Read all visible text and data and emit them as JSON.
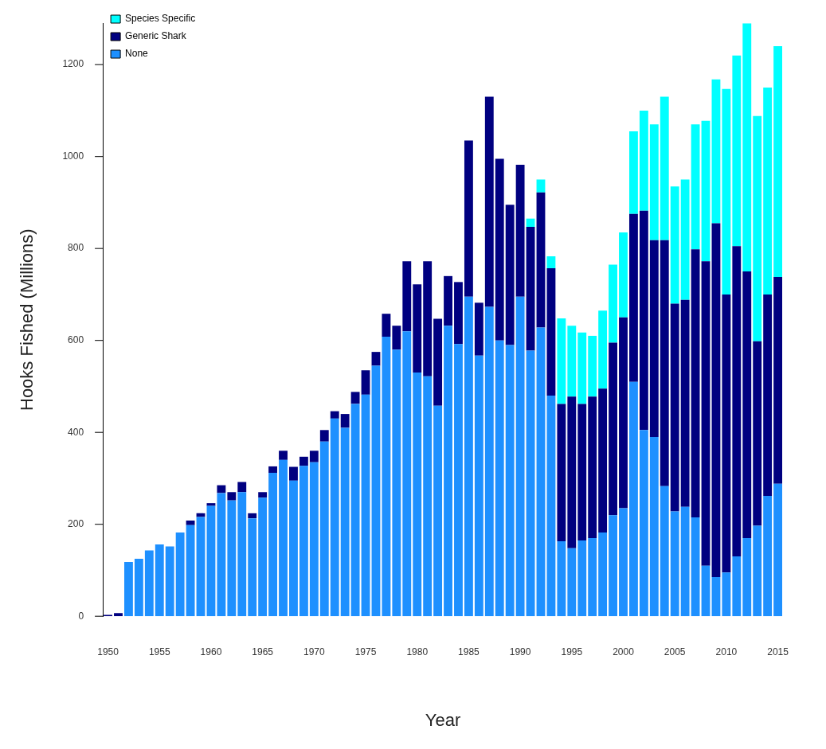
{
  "chart_data": {
    "type": "bar",
    "stacked": true,
    "xlabel": "Year",
    "ylabel": "Hooks Fished (Millions)",
    "categories": [
      "1950",
      null,
      null,
      null,
      null,
      "1955",
      null,
      null,
      null,
      null,
      "1960",
      null,
      null,
      null,
      null,
      "1965",
      null,
      null,
      null,
      null,
      "1970",
      null,
      null,
      null,
      null,
      "1975",
      null,
      null,
      null,
      null,
      "1980",
      null,
      null,
      null,
      null,
      "1985",
      null,
      null,
      null,
      null,
      "1990",
      null,
      null,
      null,
      null,
      "1995",
      null,
      null,
      null,
      null,
      "2000",
      null,
      null,
      null,
      null,
      "2005",
      null,
      null,
      null,
      null,
      "2010",
      null,
      null,
      null,
      null,
      "2015"
    ],
    "series": [
      {
        "name": "None",
        "color": "#1e90ff",
        "values": [
          0,
          0,
          118,
          125,
          143,
          156,
          152,
          182,
          198,
          216,
          240,
          268,
          252,
          270,
          213,
          258,
          312,
          340,
          295,
          327,
          335,
          380,
          430,
          410,
          462,
          482,
          545,
          608,
          580,
          620,
          530,
          522,
          458,
          632,
          592,
          695,
          567,
          673,
          600,
          590,
          695,
          578,
          628,
          480,
          163,
          148,
          165,
          170,
          182,
          220,
          235,
          510,
          405,
          390,
          283,
          228,
          238,
          215,
          110,
          85,
          95,
          130,
          170,
          197,
          262,
          288
        ]
      },
      {
        "name": "Generic Shark",
        "color": "#000080",
        "values": [
          3,
          7,
          0,
          0,
          0,
          0,
          0,
          0,
          10,
          8,
          6,
          17,
          18,
          22,
          11,
          12,
          14,
          20,
          30,
          20,
          25,
          25,
          16,
          30,
          26,
          53,
          30,
          50,
          52,
          152,
          192,
          250,
          189,
          108,
          135,
          340,
          115,
          457,
          395,
          305,
          287,
          269,
          294,
          277,
          299,
          330,
          297,
          308,
          313,
          375,
          415,
          365,
          477,
          428,
          535,
          452,
          450,
          583,
          662,
          770,
          605,
          675,
          580,
          401,
          438,
          450
        ]
      },
      {
        "name": "Species Specific",
        "color": "#00ffff",
        "values": [
          0,
          0,
          0,
          0,
          0,
          0,
          0,
          0,
          0,
          0,
          0,
          0,
          0,
          0,
          0,
          0,
          0,
          0,
          0,
          0,
          0,
          0,
          0,
          0,
          0,
          0,
          0,
          0,
          0,
          0,
          0,
          0,
          0,
          0,
          0,
          0,
          0,
          0,
          0,
          0,
          0,
          18,
          28,
          26,
          186,
          154,
          155,
          132,
          170,
          170,
          185,
          180,
          218,
          252,
          312,
          255,
          262,
          272,
          306,
          313,
          447,
          415,
          540,
          490,
          450,
          502
        ]
      }
    ],
    "ylim": [
      0,
      1290
    ],
    "yticks": [
      0,
      200,
      400,
      600,
      800,
      1000,
      1200
    ],
    "grid": false,
    "legend": "top left"
  }
}
